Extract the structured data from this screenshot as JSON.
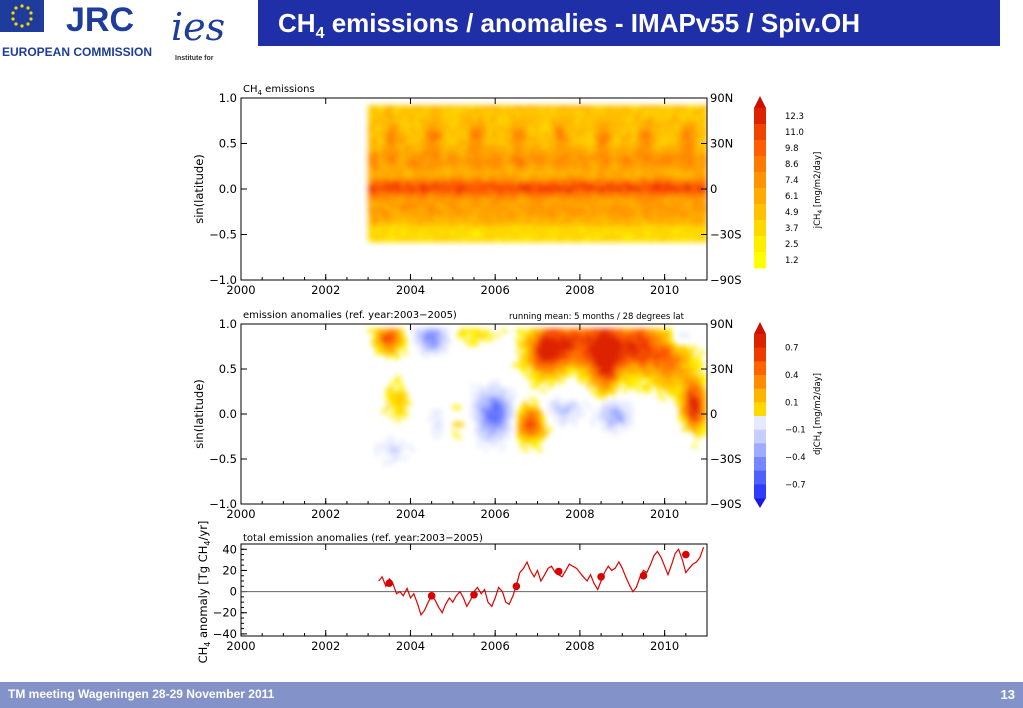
{
  "header": {
    "jrc_text": "JRC",
    "commission_text": "EUROPEAN COMMISSION",
    "ies_text": "ies",
    "ies_sub": "Institute for",
    "title_pre": "CH",
    "title_sub": "4",
    "title_post": " emissions / anomalies - IMAPv55 / Spiv.OH"
  },
  "footer": {
    "left": "TM meeting Wageningen 28-29 November 2011",
    "page": "13"
  },
  "colors": {
    "title_bar": "#1f2fa8",
    "footer_bar": "#8393c9",
    "series_line": "#e00000",
    "marker": "#d80000"
  },
  "chart_data": [
    {
      "type": "heatmap",
      "title": "CH4 emissions",
      "title_parts": {
        "pre": "CH",
        "sub": "4",
        "post": "  emissions"
      },
      "xlabel": "",
      "ylabel": "sin(latitude)",
      "xlim": [
        2000,
        2011
      ],
      "xticks": [
        "2000",
        "2002",
        "2004",
        "2006",
        "2008",
        "2010"
      ],
      "ylim": [
        -1.0,
        1.0
      ],
      "yticks": [
        "1.0",
        "0.5",
        "0.0",
        "−0.5",
        "−1.0"
      ],
      "right_ticks": [
        "90N",
        "30N",
        "0",
        "−30S",
        "−90S"
      ],
      "data_range_years": [
        2003.0,
        2011.0
      ],
      "data_range_sinlat": [
        -0.58,
        0.92
      ],
      "colorbar": {
        "label_pre": "jCH",
        "label_sub": "4",
        "label_post": " [mg/m2/day]",
        "levels": [
          "12.3",
          "11.0",
          "9.8",
          "8.6",
          "7.4",
          "6.1",
          "4.9",
          "3.7",
          "2.5",
          "1.2"
        ]
      }
    },
    {
      "type": "heatmap",
      "title": "emission anomalies (ref. year:2003−2005)",
      "annotation": "running mean:  5 months / 28 degrees lat",
      "xlabel": "",
      "ylabel": "sin(latitude)",
      "xlim": [
        2000,
        2011
      ],
      "xticks": [
        "2000",
        "2002",
        "2004",
        "2006",
        "2008",
        "2010"
      ],
      "ylim": [
        -1.0,
        1.0
      ],
      "yticks": [
        "1.0",
        "0.5",
        "0.0",
        "−0.5",
        "−1.0"
      ],
      "right_ticks": [
        "90N",
        "30N",
        "0",
        "−30S",
        "−90S"
      ],
      "data_range_years": [
        2003.0,
        2011.0
      ],
      "colorbar": {
        "label_pre": "djCH",
        "label_sub": "4",
        "label_post": " [mg/m2/day]",
        "levels": [
          "0.7",
          "0.4",
          "0.1",
          "−0.1",
          "−0.4",
          "−0.7"
        ]
      }
    },
    {
      "type": "line",
      "title": "total emission anomalies (ref. year:2003−2005)",
      "ylabel_pre": "CH",
      "ylabel_sub": "4",
      "ylabel_post": " anomaly  [Tg CH",
      "ylabel_sub2": "4",
      "ylabel_end": "/yr]",
      "xlim": [
        2000,
        2011
      ],
      "xticks": [
        "2000",
        "2002",
        "2004",
        "2006",
        "2008",
        "2010"
      ],
      "ylim": [
        -42,
        45
      ],
      "yticks": [
        40,
        20,
        0,
        -20,
        -40
      ],
      "ytick_labels": [
        "40",
        "20",
        "0",
        "−20",
        "−40"
      ],
      "grid": false,
      "zero_line": true,
      "series": [
        {
          "role": "monthly",
          "x": [
            2003.25,
            2003.33,
            2003.42,
            2003.5,
            2003.58,
            2003.67,
            2003.75,
            2003.83,
            2003.92,
            2004.0,
            2004.08,
            2004.17,
            2004.25,
            2004.33,
            2004.42,
            2004.5,
            2004.58,
            2004.67,
            2004.75,
            2004.83,
            2004.92,
            2005.0,
            2005.08,
            2005.17,
            2005.25,
            2005.33,
            2005.42,
            2005.5,
            2005.58,
            2005.67,
            2005.75,
            2005.83,
            2005.92,
            2006.0,
            2006.08,
            2006.17,
            2006.25,
            2006.33,
            2006.42,
            2006.5,
            2006.58,
            2006.67,
            2006.75,
            2006.83,
            2006.92,
            2007.0,
            2007.08,
            2007.17,
            2007.25,
            2007.33,
            2007.42,
            2007.5,
            2007.58,
            2007.67,
            2007.75,
            2007.83,
            2007.92,
            2008.0,
            2008.08,
            2008.17,
            2008.25,
            2008.33,
            2008.42,
            2008.5,
            2008.58,
            2008.67,
            2008.75,
            2008.83,
            2008.92,
            2009.0,
            2009.08,
            2009.17,
            2009.25,
            2009.33,
            2009.42,
            2009.5,
            2009.58,
            2009.67,
            2009.75,
            2009.83,
            2009.92,
            2010.0,
            2010.08,
            2010.17,
            2010.25,
            2010.33,
            2010.42,
            2010.5,
            2010.58,
            2010.67,
            2010.75,
            2010.83,
            2010.92
          ],
          "y": [
            10,
            14,
            5,
            12,
            8,
            -2,
            0,
            -4,
            3,
            -6,
            -2,
            -12,
            -22,
            -18,
            -10,
            -4,
            -8,
            -15,
            -20,
            -12,
            -6,
            -10,
            -4,
            0,
            -6,
            -14,
            -8,
            0,
            4,
            -2,
            2,
            -10,
            -14,
            -6,
            4,
            0,
            -10,
            -12,
            -4,
            6,
            18,
            22,
            28,
            20,
            14,
            20,
            10,
            16,
            22,
            24,
            18,
            16,
            14,
            20,
            26,
            24,
            22,
            18,
            14,
            10,
            16,
            8,
            2,
            10,
            18,
            24,
            20,
            22,
            28,
            22,
            14,
            6,
            0,
            4,
            14,
            20,
            18,
            26,
            34,
            38,
            32,
            24,
            16,
            26,
            36,
            40,
            30,
            18,
            22,
            26,
            28,
            32,
            42
          ]
        },
        {
          "role": "annual",
          "x": [
            2003.5,
            2004.5,
            2005.5,
            2006.5,
            2007.5,
            2008.5,
            2009.5,
            2010.5
          ],
          "y": [
            8,
            -4,
            -3,
            5,
            19,
            14,
            15,
            35
          ]
        }
      ]
    }
  ]
}
